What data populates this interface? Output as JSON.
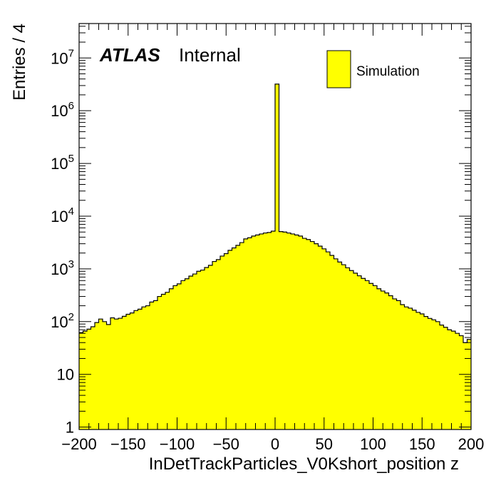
{
  "chart_data": {
    "type": "bar",
    "label_atlas": "ATLAS",
    "label_status": "Internal",
    "xlabel": "InDetTrackParticles_V0Kshort_position z",
    "ylabel": "Entries / 4",
    "xlim": [
      -200,
      200
    ],
    "ylim": [
      0.9,
      45000000
    ],
    "log_y": true,
    "bin_width": 4,
    "x_ticks": [
      "−200",
      "−150",
      "−100",
      "−50",
      "0",
      "50",
      "100",
      "150",
      "200"
    ],
    "y_ticks": [
      "1",
      "10",
      "10^2",
      "10^3",
      "10^4",
      "10^5",
      "10^6",
      "10^7"
    ],
    "legend_position": "top-right",
    "series": [
      {
        "name": "Simulation",
        "color": "#ffff00",
        "edge_color": "#000000",
        "bin_low_edges": [
          -200,
          -196,
          -192,
          -188,
          -184,
          -180,
          -176,
          -172,
          -168,
          -164,
          -160,
          -156,
          -152,
          -148,
          -144,
          -140,
          -136,
          -132,
          -128,
          -124,
          -120,
          -116,
          -112,
          -108,
          -104,
          -100,
          -96,
          -92,
          -88,
          -84,
          -80,
          -76,
          -72,
          -68,
          -64,
          -60,
          -56,
          -52,
          -48,
          -44,
          -40,
          -36,
          -32,
          -28,
          -24,
          -20,
          -16,
          -12,
          -8,
          -4,
          0,
          4,
          8,
          12,
          16,
          20,
          24,
          28,
          32,
          36,
          40,
          44,
          48,
          52,
          56,
          60,
          64,
          68,
          72,
          76,
          80,
          84,
          88,
          92,
          96,
          100,
          104,
          108,
          112,
          116,
          120,
          124,
          128,
          132,
          136,
          140,
          144,
          148,
          152,
          156,
          160,
          164,
          168,
          172,
          176,
          180,
          184,
          188,
          192,
          196
        ],
        "values": [
          62,
          66,
          72,
          80,
          96,
          112,
          100,
          88,
          118,
          112,
          116,
          126,
          138,
          146,
          162,
          172,
          190,
          200,
          235,
          250,
          300,
          330,
          360,
          420,
          480,
          520,
          600,
          650,
          730,
          800,
          900,
          950,
          1060,
          1170,
          1380,
          1500,
          1750,
          1950,
          2250,
          2500,
          2800,
          3150,
          3700,
          3900,
          4200,
          4400,
          4600,
          4800,
          4900,
          5200,
          3200000,
          5100,
          5000,
          4800,
          4600,
          4400,
          4200,
          3800,
          3600,
          3300,
          3000,
          2700,
          2400,
          2100,
          1800,
          1550,
          1350,
          1200,
          1050,
          930,
          830,
          740,
          660,
          600,
          530,
          480,
          420,
          380,
          350,
          310,
          270,
          250,
          210,
          190,
          180,
          165,
          150,
          140,
          125,
          115,
          108,
          100,
          86,
          78,
          70,
          66,
          60,
          54,
          40,
          46
        ]
      }
    ]
  }
}
